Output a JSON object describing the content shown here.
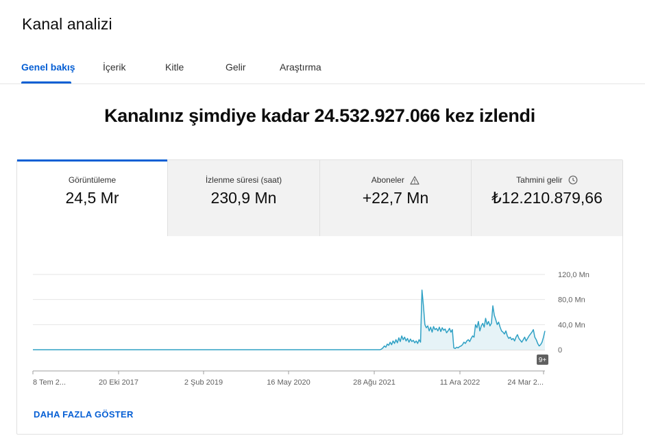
{
  "page": {
    "title": "Kanal analizi"
  },
  "tabs": [
    {
      "label": "Genel bakış",
      "active": true
    },
    {
      "label": "İçerik"
    },
    {
      "label": "Kitle"
    },
    {
      "label": "Gelir"
    },
    {
      "label": "Araştırma"
    }
  ],
  "headline": "Kanalınız şimdiye kadar 24.532.927.066 kez izlendi",
  "metrics": [
    {
      "label": "Görüntüleme",
      "value": "24,5 Mr",
      "active": true
    },
    {
      "label": "İzlenme süresi (saat)",
      "value": "230,9 Mn"
    },
    {
      "label": "Aboneler",
      "value": "+22,7 Mn",
      "icon": "warning-icon"
    },
    {
      "label": "Tahmini gelir",
      "value": "₺12.210.879,66",
      "icon": "clock-icon"
    }
  ],
  "badge": "9+",
  "show_more": "DAHA FAZLA GÖSTER",
  "colors": {
    "accent": "#065fd4",
    "line": "#2ea0c4",
    "area": "#e6f3f7"
  },
  "chart_data": {
    "type": "area",
    "y_ticks": [
      "120,0 Mn",
      "80,0 Mn",
      "40,0 Mn",
      "0"
    ],
    "ylim": [
      0,
      120
    ],
    "x_ticks": [
      "8 Tem 2...",
      "20 Eki 2017",
      "2 Şub 2019",
      "16 May 2020",
      "28 Ağu 2021",
      "11 Ara 2022",
      "24 Mar 2..."
    ],
    "grid": true,
    "series": [
      {
        "values": [
          0,
          0,
          0,
          0,
          0,
          0,
          0,
          0,
          0,
          0,
          0,
          0,
          0,
          0,
          0,
          0,
          0,
          0,
          0,
          0,
          0,
          0,
          0,
          0,
          0,
          0,
          0,
          0,
          0,
          0,
          0,
          0,
          0,
          0,
          0,
          0,
          0,
          0,
          0,
          0,
          0,
          0,
          0,
          0,
          0,
          0,
          0,
          0,
          0,
          0,
          0,
          0,
          0,
          0,
          0,
          0,
          0,
          0,
          0,
          0,
          0,
          0,
          0,
          0,
          0,
          0,
          0,
          0,
          0,
          0,
          0,
          0,
          0,
          0,
          0,
          0,
          0,
          0,
          0,
          0,
          0,
          0,
          0,
          0,
          0,
          0,
          0,
          0,
          0,
          0,
          0,
          0,
          0,
          0,
          0,
          0,
          0,
          0,
          0,
          0,
          0,
          0,
          0,
          0,
          0,
          0,
          0,
          0,
          0,
          0,
          0,
          0,
          0,
          0,
          0,
          0,
          0,
          0,
          0,
          0,
          0,
          0,
          0,
          0,
          0,
          0,
          0,
          0,
          0,
          0,
          0,
          0,
          0,
          0,
          0,
          0,
          0,
          0,
          0,
          0,
          0,
          0,
          0,
          0,
          0,
          0,
          0,
          0,
          0,
          0,
          0,
          0,
          0,
          0,
          0,
          0,
          0,
          0,
          0,
          0,
          0,
          0,
          0,
          0,
          0,
          0,
          0,
          0,
          0,
          0,
          0,
          0,
          0,
          0,
          0,
          0,
          0,
          0,
          0,
          0,
          0,
          0,
          0,
          0,
          0,
          0,
          0,
          0,
          0,
          0,
          0,
          0,
          0,
          0,
          0,
          0,
          0,
          0,
          0,
          0,
          0,
          0,
          0,
          0,
          0,
          0,
          0,
          0,
          0,
          0,
          0,
          0,
          0,
          0,
          0,
          0,
          0,
          0,
          0,
          0,
          0,
          0,
          0,
          0,
          0,
          0,
          0,
          0,
          0,
          0,
          0,
          0,
          0,
          0,
          0,
          0,
          0,
          0,
          0,
          0,
          0,
          1,
          3,
          6,
          4,
          9,
          7,
          12,
          8,
          14,
          10,
          16,
          11,
          19,
          13,
          22,
          16,
          20,
          14,
          18,
          12,
          17,
          13,
          15,
          11,
          14,
          10,
          16,
          12,
          95,
          70,
          40,
          35,
          38,
          30,
          36,
          28,
          37,
          32,
          34,
          30,
          36,
          29,
          35,
          31,
          33,
          27,
          30,
          34,
          28,
          32,
          3,
          2,
          4,
          3,
          5,
          6,
          8,
          12,
          10,
          14,
          16,
          13,
          18,
          22,
          20,
          40,
          35,
          45,
          30,
          38,
          42,
          36,
          50,
          40,
          45,
          38,
          42,
          70,
          55,
          48,
          40,
          44,
          36,
          30,
          28,
          25,
          30,
          22,
          18,
          20,
          16,
          18,
          14,
          20,
          24,
          18,
          15,
          12,
          16,
          20,
          14,
          18,
          22,
          25,
          28,
          32,
          20,
          16,
          10,
          6,
          8,
          12,
          20,
          30
        ],
        "x_min": 0,
        "x_max": 299
      }
    ]
  }
}
